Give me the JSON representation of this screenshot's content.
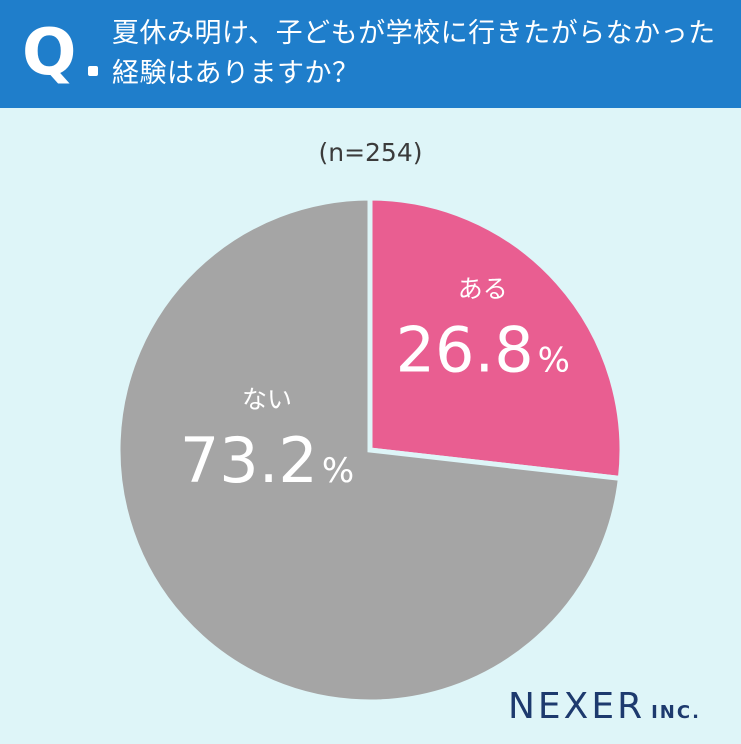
{
  "header": {
    "q_label": "Q",
    "question_line1": "夏休み明け、子どもが学校に行きたがらなかった",
    "question_line2": "経験はありますか？"
  },
  "chart_data": {
    "type": "pie",
    "sample_label": "(n=254)",
    "slices": [
      {
        "label": "ある",
        "value": 26.8,
        "display": "26.8",
        "unit": "%",
        "color": "#e95e91"
      },
      {
        "label": "ない",
        "value": 73.2,
        "display": "73.2",
        "unit": "%",
        "color": "#a5a5a5"
      }
    ],
    "start_angle_deg": 0,
    "direction": "clockwise",
    "separator_color": "#def5f8"
  },
  "brand": {
    "name": "NEXER",
    "suffix": "INC."
  }
}
